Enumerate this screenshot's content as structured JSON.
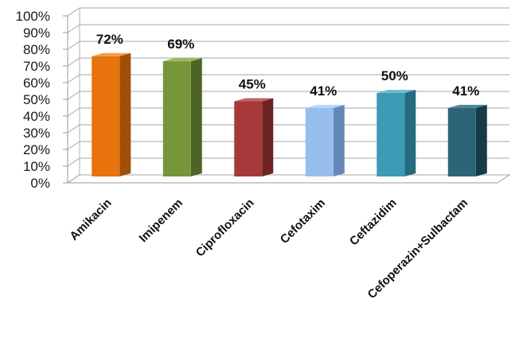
{
  "chart_data": {
    "type": "bar",
    "categories": [
      "Amikacin",
      "Imipenem",
      "Ciprofloxacin",
      "Cefotaxim",
      "Ceftazidim",
      "Cefoperazin+Sulbactam"
    ],
    "values": [
      72,
      69,
      45,
      41,
      50,
      41
    ],
    "data_labels": [
      "72%",
      "69%",
      "45%",
      "41%",
      "50%",
      "41%"
    ],
    "ylim": [
      0,
      100
    ],
    "yticks": [
      "0%",
      "10%",
      "20%",
      "30%",
      "40%",
      "50%",
      "60%",
      "70%",
      "80%",
      "90%",
      "100%"
    ],
    "grid": true,
    "legend": "none",
    "style": "3d-column",
    "colors": [
      {
        "front": "#E8720C",
        "side": "#A14F06",
        "top": "#F39A4A"
      },
      {
        "front": "#77963A",
        "side": "#4E6424",
        "top": "#9CB865"
      },
      {
        "front": "#A63A3A",
        "side": "#6E2424",
        "top": "#C46464"
      },
      {
        "front": "#95BEED",
        "side": "#6489B8",
        "top": "#BCD6F5"
      },
      {
        "front": "#3E9BB5",
        "side": "#256A7E",
        "top": "#72BCD1"
      },
      {
        "front": "#2D6577",
        "side": "#163C48",
        "top": "#4F8797"
      }
    ]
  }
}
